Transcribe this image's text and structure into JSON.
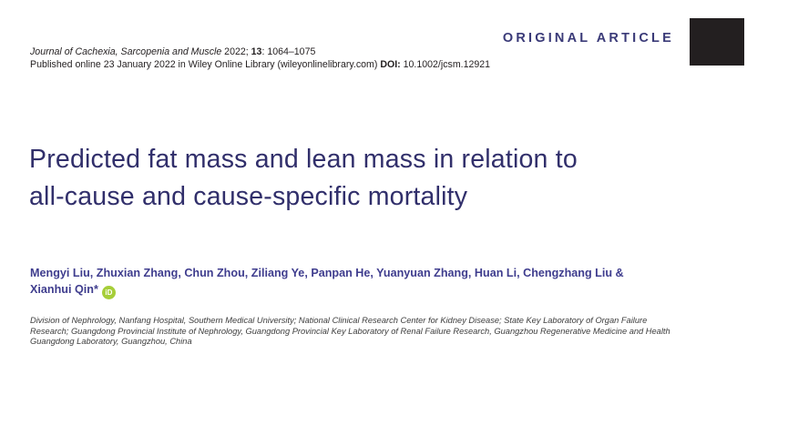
{
  "header": {
    "journal_name": "Journal of Cachexia, Sarcopenia and Muscle",
    "citation_mid": " 2022; ",
    "volume": "13",
    "pages": ": 1064–1075",
    "published_text": "Published online 23 January 2022 in Wiley Online Library (wileyonlinelibrary.com) ",
    "doi_label": "DOI:",
    "doi_value": " 10.1002/jcsm.12921",
    "article_type": "ORIGINAL ARTICLE"
  },
  "title": {
    "line1": "Predicted fat mass and lean mass in relation to",
    "line2": "all-cause and cause-specific mortality"
  },
  "authors": {
    "line1": "Mengyi Liu, Zhuxian Zhang, Chun Zhou, Ziliang Ye, Panpan He, Yuanyuan Zhang, Huan Li, Chengzhang Liu &",
    "line2": "Xianhui Qin*",
    "orcid_icon_label": "iD"
  },
  "affiliation": {
    "line1": "Division of Nephrology, Nanfang Hospital, Southern Medical University; National Clinical Research Center for Kidney Disease; State Key Laboratory of Organ Failure",
    "line2": "Research; Guangdong Provincial Institute of Nephrology, Guangdong Provincial Key Laboratory of Renal Failure Research, Guangzhou Regenerative Medicine and Health",
    "line3": "Guangdong Laboratory, Guangzhou, China"
  },
  "colors": {
    "header_text": "#231f20",
    "article_type": "#3a3a78",
    "logo": "#231f20",
    "title": "#312f6b",
    "authors": "#3f3d8e",
    "orcid": "#a6ce39",
    "affiliation": "#3d3d3d"
  }
}
